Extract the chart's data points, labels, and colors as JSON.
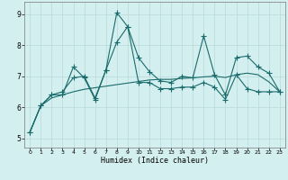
{
  "xlabel": "Humidex (Indice chaleur)",
  "xlim": [
    -0.5,
    23.5
  ],
  "ylim": [
    4.7,
    9.4
  ],
  "xticks": [
    0,
    1,
    2,
    3,
    4,
    5,
    6,
    7,
    8,
    9,
    10,
    11,
    12,
    13,
    14,
    15,
    16,
    17,
    18,
    19,
    20,
    21,
    22,
    23
  ],
  "yticks": [
    5,
    6,
    7,
    8,
    9
  ],
  "bg_color": "#d4efef",
  "grid_color": "#b8dada",
  "line_color": "#1a6b6b",
  "line_width": 0.8,
  "marker": "+",
  "marker_size": 4,
  "line1_x": [
    0,
    1,
    2,
    3,
    4,
    5,
    6,
    7,
    8,
    9,
    10,
    11,
    12,
    13,
    14,
    15,
    16,
    17,
    18,
    19,
    20,
    21,
    22,
    23
  ],
  "line1_y": [
    5.2,
    6.05,
    6.4,
    6.4,
    7.3,
    6.95,
    6.25,
    7.2,
    9.05,
    8.6,
    7.6,
    7.15,
    6.85,
    6.8,
    7.0,
    6.95,
    8.3,
    7.05,
    6.4,
    7.6,
    7.65,
    7.3,
    7.1,
    6.5
  ],
  "line2_x": [
    0,
    1,
    2,
    3,
    4,
    5,
    6,
    7,
    8,
    9,
    10,
    11,
    12,
    13,
    14,
    15,
    16,
    17,
    18,
    19,
    20,
    21,
    22,
    23
  ],
  "line2_y": [
    5.2,
    6.05,
    6.4,
    6.5,
    6.95,
    7.0,
    6.3,
    7.2,
    8.1,
    8.6,
    6.8,
    6.8,
    6.6,
    6.6,
    6.65,
    6.65,
    6.8,
    6.65,
    6.25,
    7.05,
    6.6,
    6.5,
    6.5,
    6.5
  ],
  "line3_x": [
    0,
    1,
    2,
    3,
    4,
    5,
    6,
    7,
    8,
    9,
    10,
    11,
    12,
    13,
    14,
    15,
    16,
    17,
    18,
    19,
    20,
    21,
    22,
    23
  ],
  "line3_y": [
    5.2,
    6.05,
    6.3,
    6.4,
    6.5,
    6.58,
    6.63,
    6.68,
    6.73,
    6.78,
    6.83,
    6.88,
    6.9,
    6.9,
    6.93,
    6.95,
    6.98,
    7.0,
    6.96,
    7.05,
    7.1,
    7.05,
    6.82,
    6.5
  ]
}
